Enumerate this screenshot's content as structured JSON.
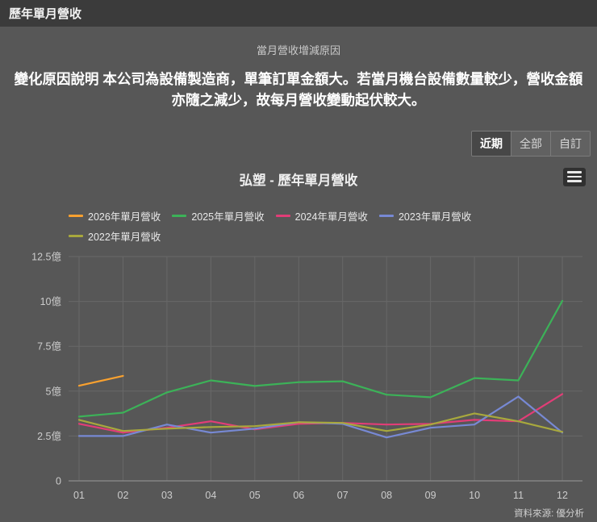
{
  "header": {
    "title": "歷年單月營收"
  },
  "section": {
    "subtitle": "當月營收增減原因",
    "description": "變化原因說明 本公司為設備製造商，單筆訂單金額大。若當月機台設備數量較少，營收金額亦隨之減少，故每月營收變動起伏較大。"
  },
  "range_buttons": [
    {
      "label": "近期",
      "selected": true
    },
    {
      "label": "全部",
      "selected": false
    },
    {
      "label": "自訂",
      "selected": false
    }
  ],
  "chart_header": {
    "title": "弘塑 - 歷年單月營收",
    "menu_icon": "hamburger-menu"
  },
  "source_note": "資料來源: 優分析",
  "colors": {
    "page_background": "#575757",
    "topbar_background": "#3b3b3b",
    "gridline": "#686868",
    "axis_line": "#999999",
    "axis_text": "#cccccc"
  },
  "chart_data": {
    "type": "line",
    "title": "弘塑 - 歷年單月營收",
    "unit": "億",
    "categories": [
      "01",
      "02",
      "03",
      "04",
      "05",
      "06",
      "07",
      "08",
      "09",
      "10",
      "11",
      "12"
    ],
    "yticks": [
      "0",
      "2.5億",
      "5億",
      "7.5億",
      "10億",
      "12.5億"
    ],
    "ylim": [
      0,
      12.5
    ],
    "grid": true,
    "legend_position": "top",
    "series": [
      {
        "name": "2026年單月營收",
        "color": "#f9a12f",
        "values": [
          5.3,
          5.85,
          null,
          null,
          null,
          null,
          null,
          null,
          null,
          null,
          null,
          null
        ]
      },
      {
        "name": "2025年單月營收",
        "color": "#3cb258",
        "values": [
          3.58,
          3.8,
          4.93,
          5.6,
          5.29,
          5.5,
          5.55,
          4.8,
          4.66,
          5.73,
          5.6,
          10.03
        ]
      },
      {
        "name": "2024年單月營收",
        "color": "#e23d77",
        "values": [
          3.18,
          2.69,
          2.96,
          3.32,
          2.87,
          3.18,
          3.23,
          3.14,
          3.18,
          3.4,
          3.32,
          4.84
        ]
      },
      {
        "name": "2023年單月營收",
        "color": "#7789d4",
        "values": [
          2.5,
          2.5,
          3.14,
          2.69,
          2.91,
          3.27,
          3.18,
          2.42,
          2.96,
          3.14,
          4.7,
          2.69
        ]
      },
      {
        "name": "2022年單月營收",
        "color": "#a8a83d",
        "values": [
          3.4,
          2.78,
          2.91,
          3.0,
          3.05,
          3.27,
          3.23,
          2.78,
          3.14,
          3.76,
          3.32,
          2.73
        ]
      }
    ]
  }
}
